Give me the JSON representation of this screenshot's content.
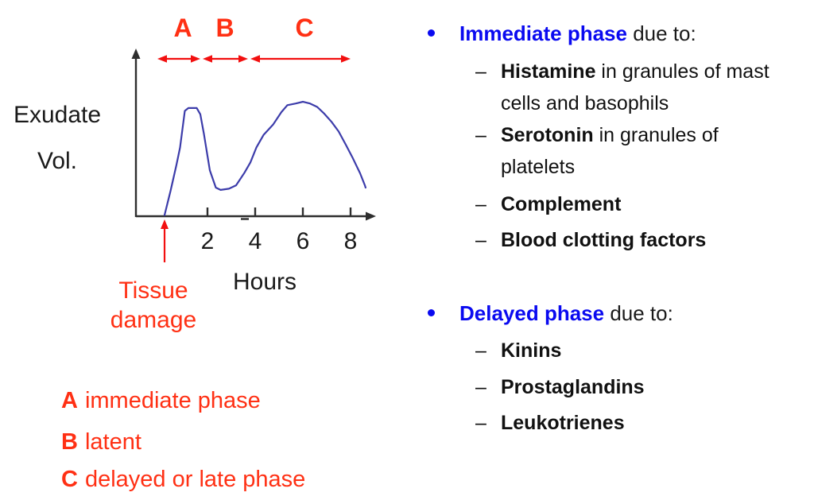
{
  "colors": {
    "accent_red": "#ff3014",
    "arrow_red": "#f20f0f",
    "bullet_blue": "#0a0af0",
    "curve_blue": "#3c3caa",
    "axis_gray": "#2e2e2e",
    "text_black": "#1a1a1a"
  },
  "chart_data": {
    "type": "line",
    "title": "",
    "xlabel": "Hours",
    "ylabel_lines": [
      "Exudate",
      "Vol."
    ],
    "x_ticks": [
      2,
      4,
      6,
      8
    ],
    "x_axis_range_hours": [
      0,
      9
    ],
    "y_axis_note": "relative exudate volume, axis unlabeled (0-100)",
    "grid": false,
    "series": [
      {
        "name": "Exudate volume",
        "color": "#3c3caa",
        "points": [
          [
            0.2,
            1
          ],
          [
            0.45,
            22
          ],
          [
            0.7,
            45
          ],
          [
            0.85,
            60
          ],
          [
            1.05,
            92
          ],
          [
            1.2,
            94.5
          ],
          [
            1.55,
            94.5
          ],
          [
            1.7,
            89
          ],
          [
            1.85,
            72
          ],
          [
            2.1,
            40
          ],
          [
            2.35,
            25
          ],
          [
            2.55,
            23
          ],
          [
            2.9,
            24
          ],
          [
            3.2,
            27
          ],
          [
            3.55,
            38
          ],
          [
            3.8,
            47
          ],
          [
            4.05,
            60
          ],
          [
            4.35,
            71
          ],
          [
            4.75,
            80
          ],
          [
            5.1,
            91
          ],
          [
            5.35,
            97
          ],
          [
            5.7,
            98.5
          ],
          [
            6.0,
            100
          ],
          [
            6.3,
            98.5
          ],
          [
            6.6,
            95.5
          ],
          [
            6.9,
            89.5
          ],
          [
            7.2,
            82.5
          ],
          [
            7.5,
            74
          ],
          [
            7.8,
            62.5
          ],
          [
            8.1,
            50.5
          ],
          [
            8.4,
            37.5
          ],
          [
            8.6,
            27
          ],
          [
            8.63,
            25
          ]
        ]
      }
    ],
    "phases": [
      {
        "label": "A",
        "from_hour": -0.1,
        "to_hour": 1.7
      },
      {
        "label": "B",
        "from_hour": 1.8,
        "to_hour": 3.7
      },
      {
        "label": "C",
        "from_hour": 3.8,
        "to_hour": 8.0
      }
    ],
    "annotation": {
      "line1": "Tissue",
      "line2": "damage",
      "at_hour": 0.2
    }
  },
  "legend": [
    {
      "key": "A",
      "text": "immediate phase"
    },
    {
      "key": "B",
      "text": "latent"
    },
    {
      "key": "C",
      "text": "delayed or late phase"
    }
  ],
  "right_panel": {
    "bullet_glyph": "•",
    "dash": "–",
    "sections": [
      {
        "title_bold": "Immediate phase",
        "title_rest": " due to:",
        "items": [
          {
            "bold": "Histamine",
            "rest": " in granules of mast",
            "cont": "cells and basophils"
          },
          {
            "bold": "Serotonin",
            "rest": " in granules of",
            "cont": "platelets"
          },
          {
            "bold": "Complement",
            "rest": "",
            "cont": ""
          },
          {
            "bold": "Blood clotting factors",
            "rest": "",
            "cont": ""
          }
        ]
      },
      {
        "title_bold": "Delayed phase",
        "title_rest": " due to:",
        "items": [
          {
            "bold": "Kinins",
            "rest": "",
            "cont": ""
          },
          {
            "bold": "Prostaglandins",
            "rest": "",
            "cont": ""
          },
          {
            "bold": "Leukotrienes",
            "rest": "",
            "cont": ""
          }
        ]
      }
    ]
  }
}
